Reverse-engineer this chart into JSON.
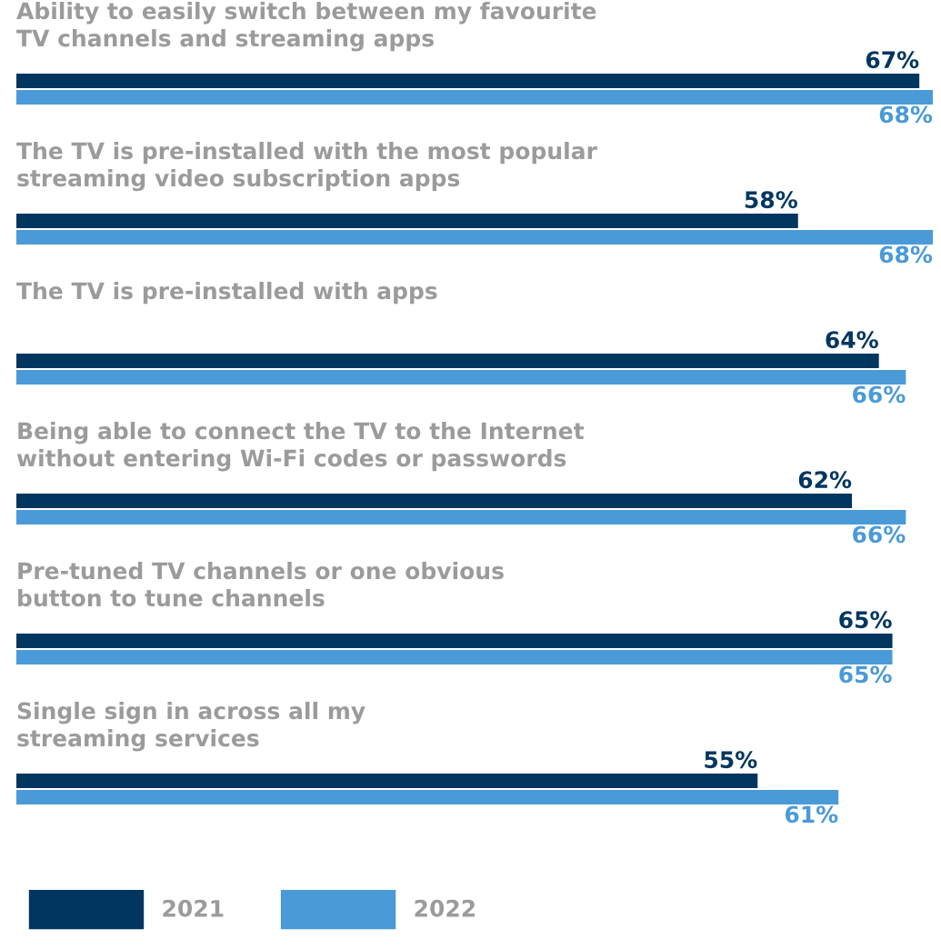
{
  "chart_data": {
    "type": "bar",
    "orientation": "horizontal",
    "legend": "bottom left",
    "categories": [
      "Ability to easily switch between my favourite\nTV channels and streaming apps",
      "The TV is pre-installed with the most popular\nstreaming video subscription apps",
      "The TV is pre-installed with apps",
      "Being able to connect the TV to the Internet\nwithout entering Wi-Fi codes or passwords",
      "Pre-tuned TV channels or one obvious\nbutton to tune channels",
      "Single sign in across all my\nstreaming services"
    ],
    "series": [
      {
        "name": "2021",
        "color": "#003660",
        "values": [
          67,
          58,
          64,
          62,
          65,
          55
        ],
        "value_labels": [
          "67%",
          "58%",
          "64%",
          "62%",
          "65%",
          "55%"
        ]
      },
      {
        "name": "2022",
        "color": "#4a9ad8",
        "values": [
          68,
          68,
          66,
          66,
          65,
          61
        ],
        "value_labels": [
          "68%",
          "68%",
          "66%",
          "66%",
          "65%",
          "61%"
        ]
      }
    ]
  }
}
